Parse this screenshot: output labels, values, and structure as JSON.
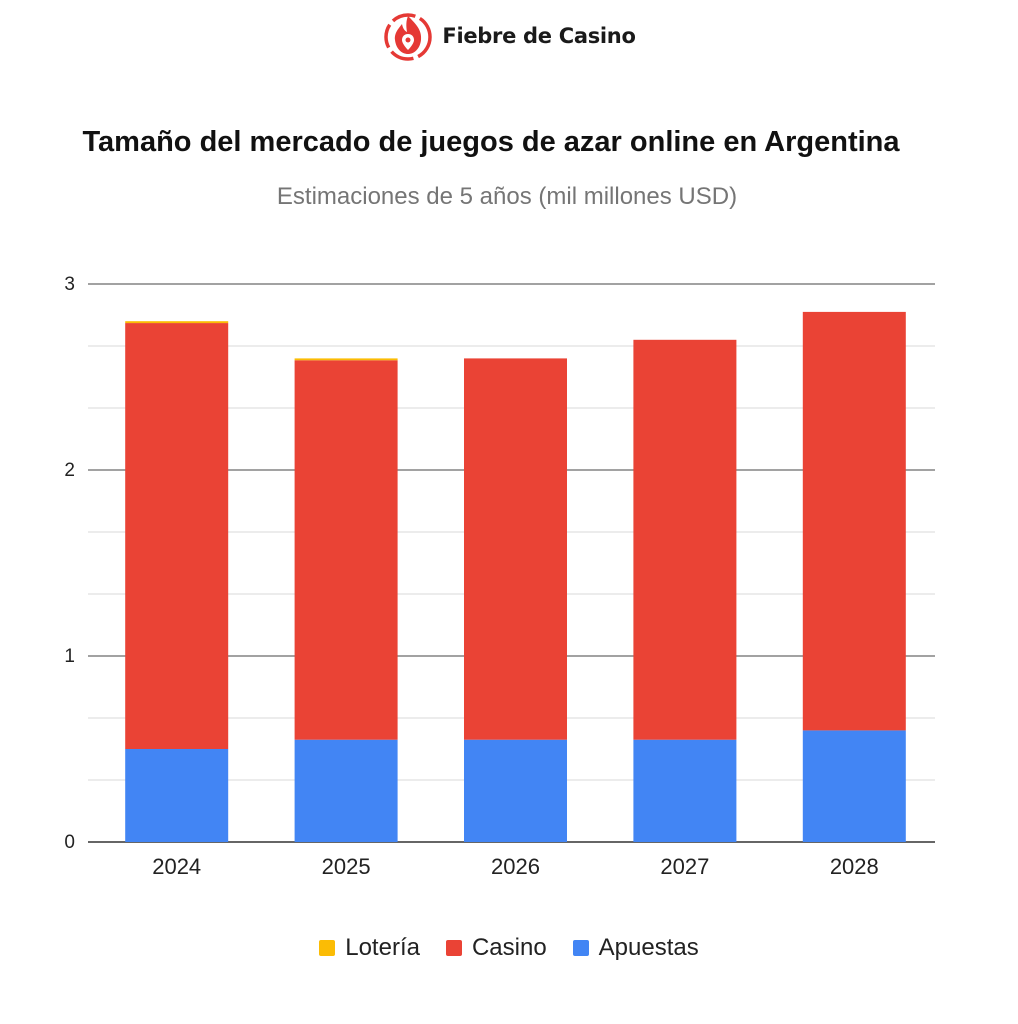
{
  "brand": {
    "name": "Fiebre de Casino",
    "logo_icon": "flame-location-pin-icon",
    "color": "#e53935"
  },
  "chart_data": {
    "type": "bar",
    "stacked": true,
    "title": "Tamaño del mercado de juegos de azar online en Argentina",
    "subtitle": "Estimaciones de 5 años (mil millones USD)",
    "xlabel": "",
    "ylabel": "",
    "categories": [
      "2024",
      "2025",
      "2026",
      "2027",
      "2028"
    ],
    "series": [
      {
        "name": "Apuestas",
        "color": "#4285f4",
        "values": [
          0.5,
          0.55,
          0.55,
          0.55,
          0.6
        ]
      },
      {
        "name": "Casino",
        "color": "#ea4335",
        "values": [
          2.29,
          2.04,
          2.05,
          2.15,
          2.25
        ]
      },
      {
        "name": "Lotería",
        "color": "#fbbc04",
        "values": [
          0.01,
          0.01,
          0,
          0,
          0
        ]
      }
    ],
    "legend_order": [
      "Lotería",
      "Casino",
      "Apuestas"
    ],
    "ylim": [
      0,
      3
    ],
    "yticks": [
      "0",
      "1",
      "2",
      "3"
    ],
    "grid": true,
    "legend_position": "bottom"
  }
}
